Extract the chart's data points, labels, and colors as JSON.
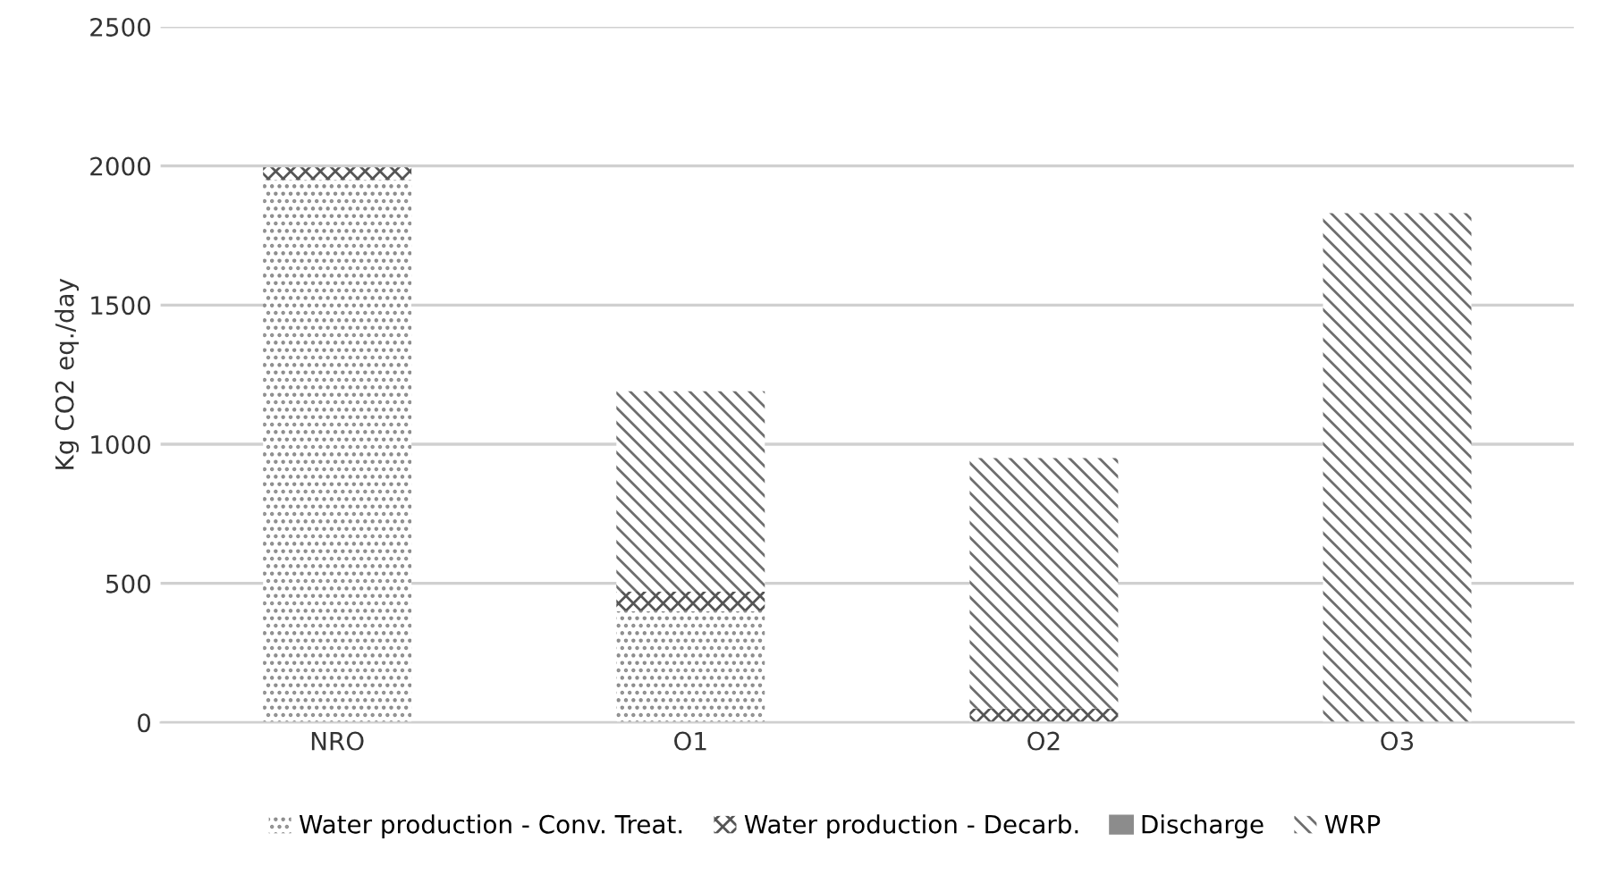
{
  "chart_data": {
    "type": "bar",
    "stacked": true,
    "ylabel": "Kg CO2 eq./day",
    "categories": [
      "NRO",
      "O1",
      "O2",
      "O3"
    ],
    "series": [
      {
        "name": "Water production - Conv. Treat.",
        "color": "#8c8c8c",
        "values": [
          1950,
          400,
          0,
          0
        ]
      },
      {
        "name": "Water production - Decarb.",
        "color": "#555555",
        "values": [
          45,
          70,
          50,
          0
        ]
      },
      {
        "name": "Discharge",
        "color": "#8c8c8c",
        "values": [
          0,
          0,
          0,
          0
        ]
      },
      {
        "name": "WRP",
        "color": "#6e6e6e",
        "values": [
          0,
          720,
          900,
          1830
        ]
      }
    ],
    "ylim": [
      0,
      2500
    ],
    "yticks": [
      0,
      500,
      1000,
      1500,
      2000,
      2500
    ],
    "grid": "y",
    "legend": "bottom"
  }
}
